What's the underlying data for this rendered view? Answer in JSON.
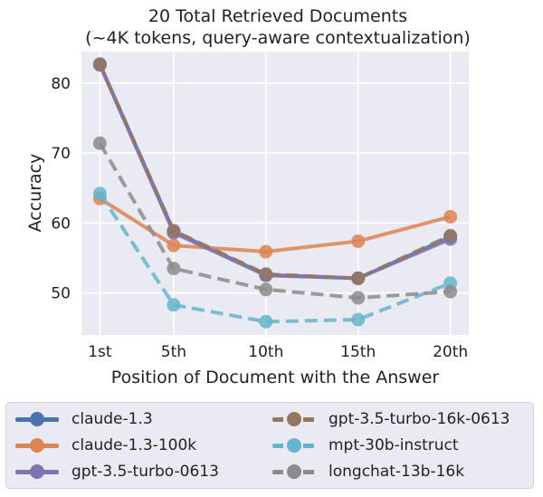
{
  "chart_data": {
    "type": "line",
    "title": "20 Total Retrieved Documents",
    "subtitle": "(~4K tokens, query-aware contextualization)",
    "xlabel": "Position of Document with the Answer",
    "ylabel": "Accuracy",
    "categories": [
      "1st",
      "5th",
      "10th",
      "15th",
      "20th"
    ],
    "x": [
      1,
      5,
      10,
      15,
      20
    ],
    "xlim": [
      0,
      21
    ],
    "ylim": [
      44,
      84.5
    ],
    "yticks": [
      50,
      60,
      70,
      80
    ],
    "grid": true,
    "legend_placement": "bottom, outside",
    "series": [
      {
        "name": "claude-1.3",
        "color": "#4c72b0",
        "dashed": false,
        "values": [
          82.7,
          58.8,
          52.6,
          52.1,
          58.0
        ]
      },
      {
        "name": "claude-1.3-100k",
        "color": "#dd8452",
        "dashed": false,
        "values": [
          63.5,
          56.8,
          55.9,
          57.4,
          60.9
        ]
      },
      {
        "name": "gpt-3.5-turbo-0613",
        "color": "#8172b3",
        "dashed": false,
        "values": [
          82.6,
          58.6,
          52.5,
          52.1,
          57.7
        ]
      },
      {
        "name": "gpt-3.5-turbo-16k-0613",
        "color": "#937860",
        "dashed": true,
        "values": [
          82.7,
          58.9,
          52.7,
          52.1,
          58.2
        ]
      },
      {
        "name": "mpt-30b-instruct",
        "color": "#64b5cd",
        "dashed": true,
        "values": [
          64.2,
          48.3,
          45.9,
          46.2,
          51.4
        ]
      },
      {
        "name": "longchat-13b-16k",
        "color": "#8c8c8c",
        "dashed": true,
        "values": [
          71.4,
          53.5,
          50.5,
          49.3,
          50.2
        ]
      }
    ]
  },
  "legend_order": [
    0,
    3,
    1,
    4,
    2,
    5
  ]
}
